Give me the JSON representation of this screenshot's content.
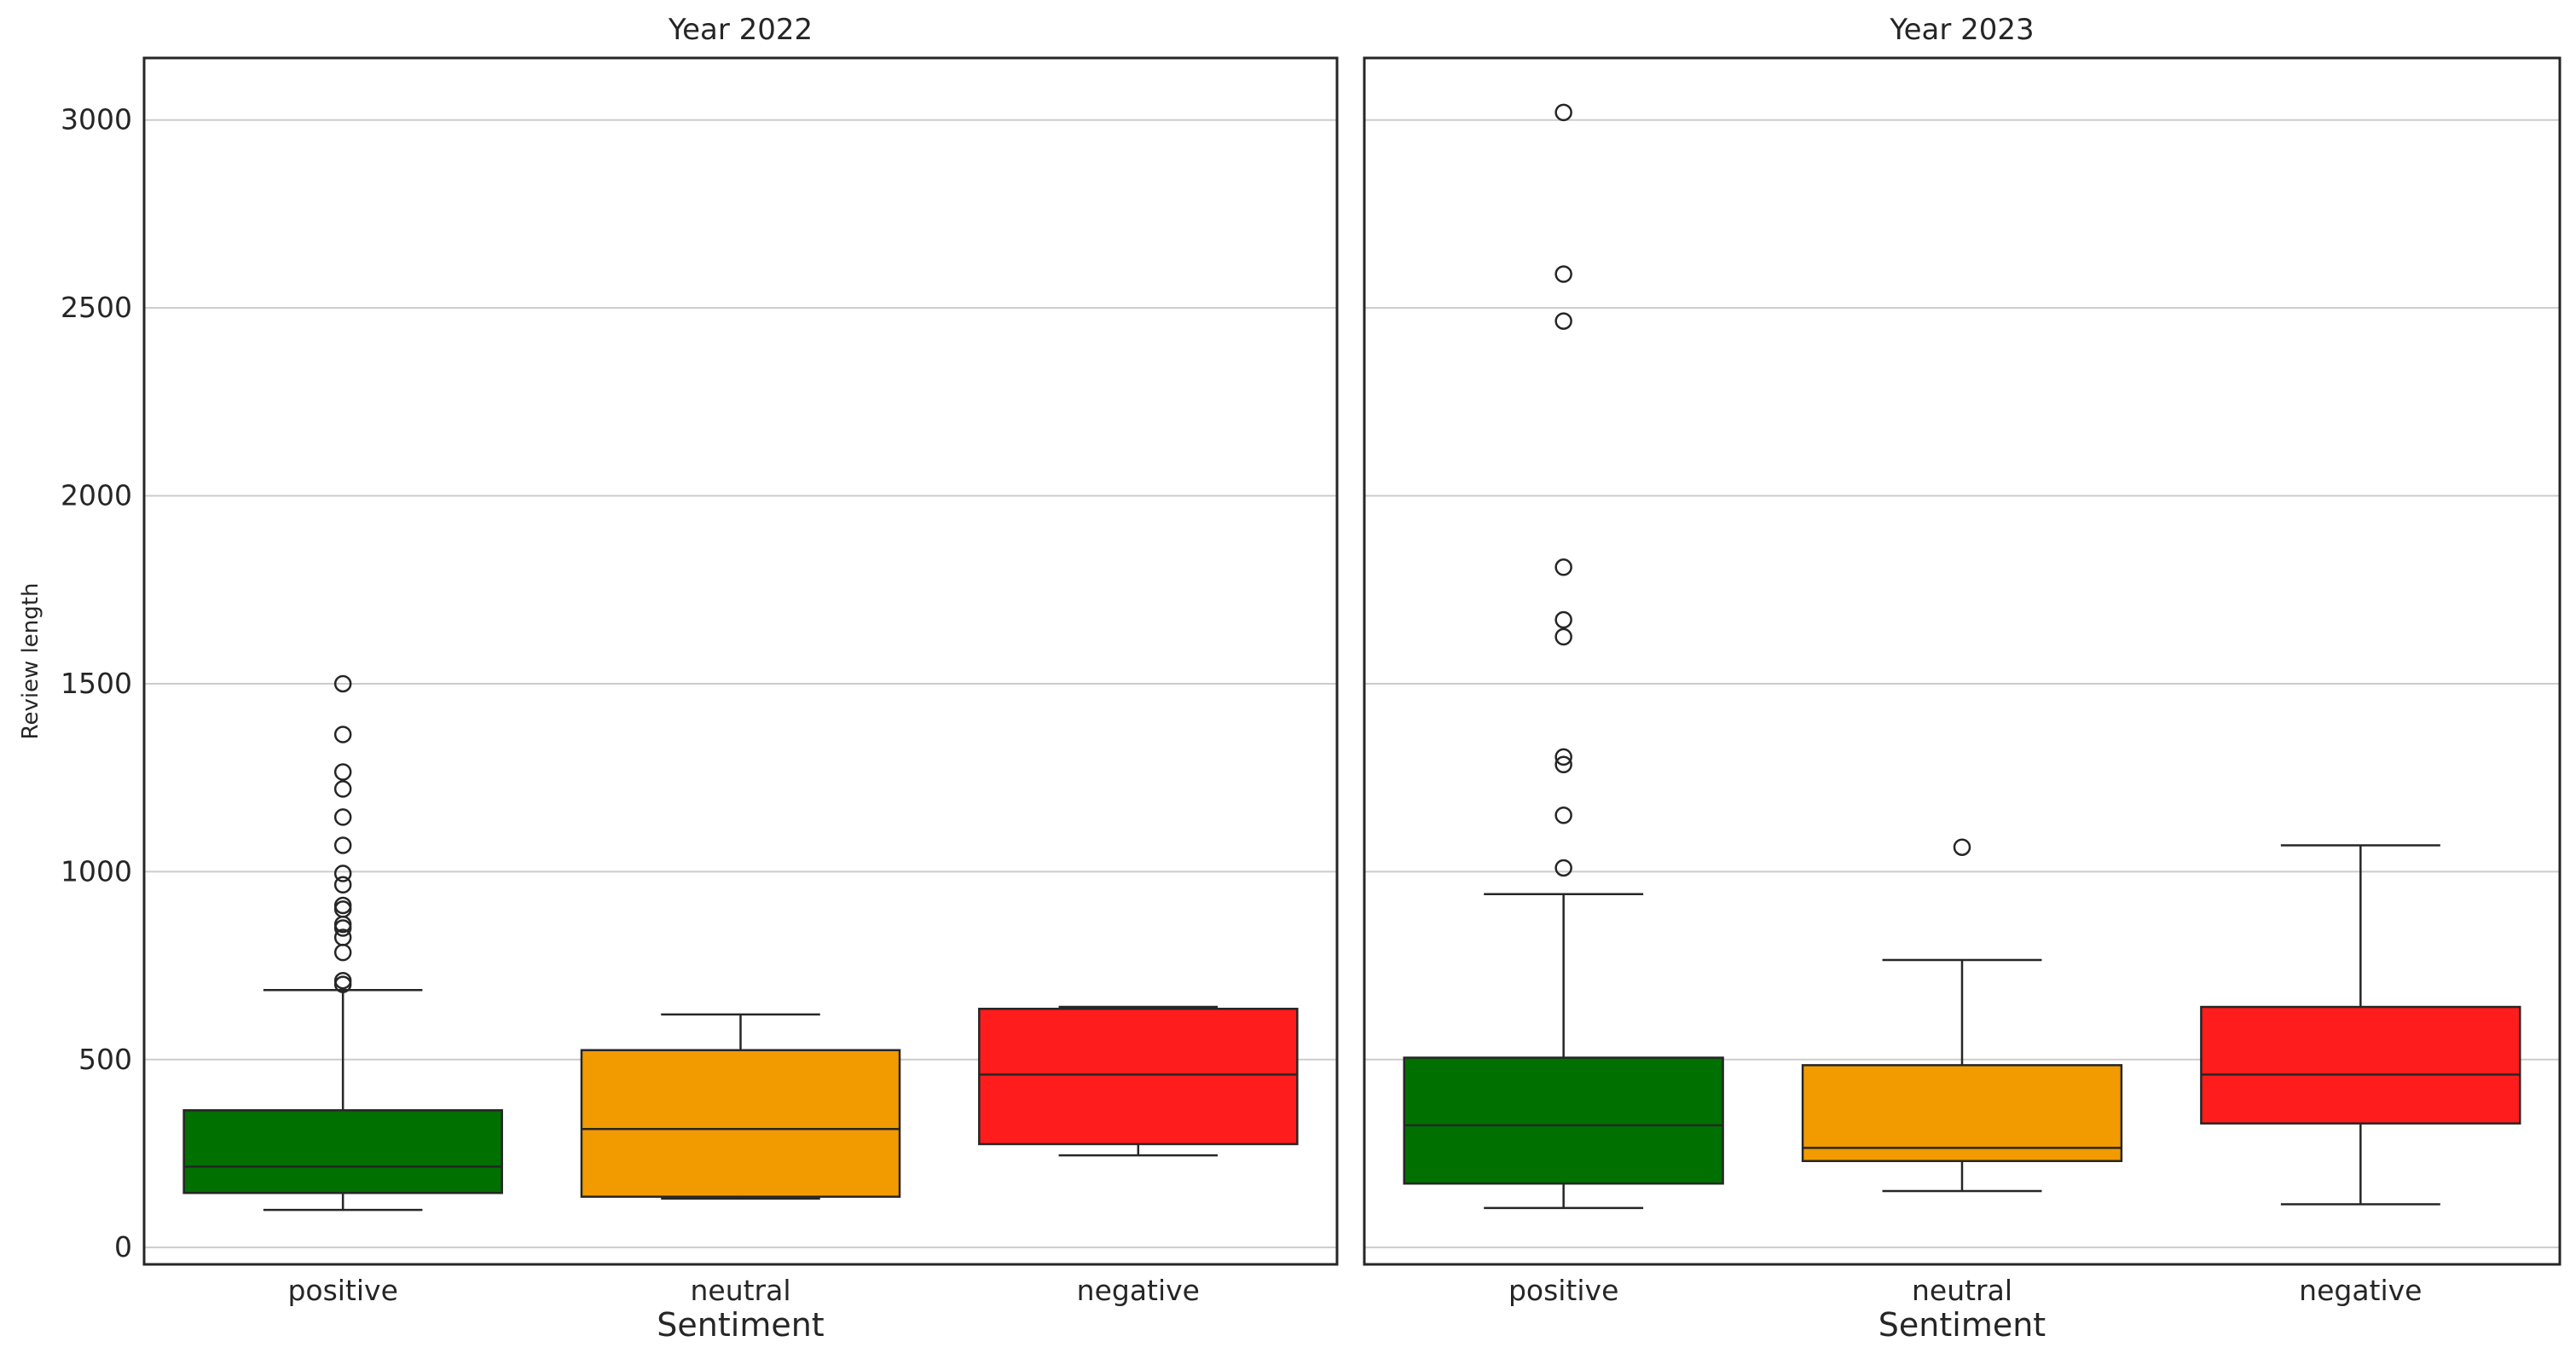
{
  "chart_data": [
    {
      "type": "box",
      "title": "Year 2022",
      "xlabel": "Sentiment",
      "ylabel": "Review length",
      "categories": [
        "positive",
        "neutral",
        "negative"
      ],
      "ylim": [
        -45,
        3165
      ],
      "yticks": [
        0,
        500,
        1000,
        1500,
        2000,
        2500,
        3000
      ],
      "grid": true,
      "boxes": [
        {
          "category": "positive",
          "color": "#007000",
          "whisker_low": 100,
          "q1": 145,
          "median": 215,
          "q3": 365,
          "whisker_high": 685,
          "outliers": [
            700,
            710,
            785,
            825,
            850,
            860,
            900,
            910,
            965,
            995,
            1070,
            1145,
            1220,
            1265,
            1365,
            1500
          ]
        },
        {
          "category": "neutral",
          "color": "#f29b00",
          "whisker_low": 130,
          "q1": 135,
          "median": 315,
          "q3": 525,
          "whisker_high": 620,
          "outliers": []
        },
        {
          "category": "negative",
          "color": "#ff1c1c",
          "whisker_low": 245,
          "q1": 275,
          "median": 460,
          "q3": 635,
          "whisker_high": 640,
          "outliers": []
        }
      ]
    },
    {
      "type": "box",
      "title": "Year 2023",
      "xlabel": "Sentiment",
      "ylabel": "",
      "categories": [
        "positive",
        "neutral",
        "negative"
      ],
      "ylim": [
        -45,
        3165
      ],
      "yticks": [
        0,
        500,
        1000,
        1500,
        2000,
        2500,
        3000
      ],
      "grid": true,
      "boxes": [
        {
          "category": "positive",
          "color": "#007000",
          "whisker_low": 105,
          "q1": 170,
          "median": 325,
          "q3": 505,
          "whisker_high": 940,
          "outliers": [
            1010,
            1150,
            1285,
            1305,
            1625,
            1670,
            1810,
            2465,
            2590,
            3020
          ]
        },
        {
          "category": "neutral",
          "color": "#f29b00",
          "whisker_low": 150,
          "q1": 230,
          "median": 265,
          "q3": 485,
          "whisker_high": 765,
          "outliers": [
            1065
          ]
        },
        {
          "category": "negative",
          "color": "#ff1c1c",
          "whisker_low": 115,
          "q1": 330,
          "median": 460,
          "q3": 640,
          "whisker_high": 1070,
          "outliers": []
        }
      ]
    }
  ]
}
